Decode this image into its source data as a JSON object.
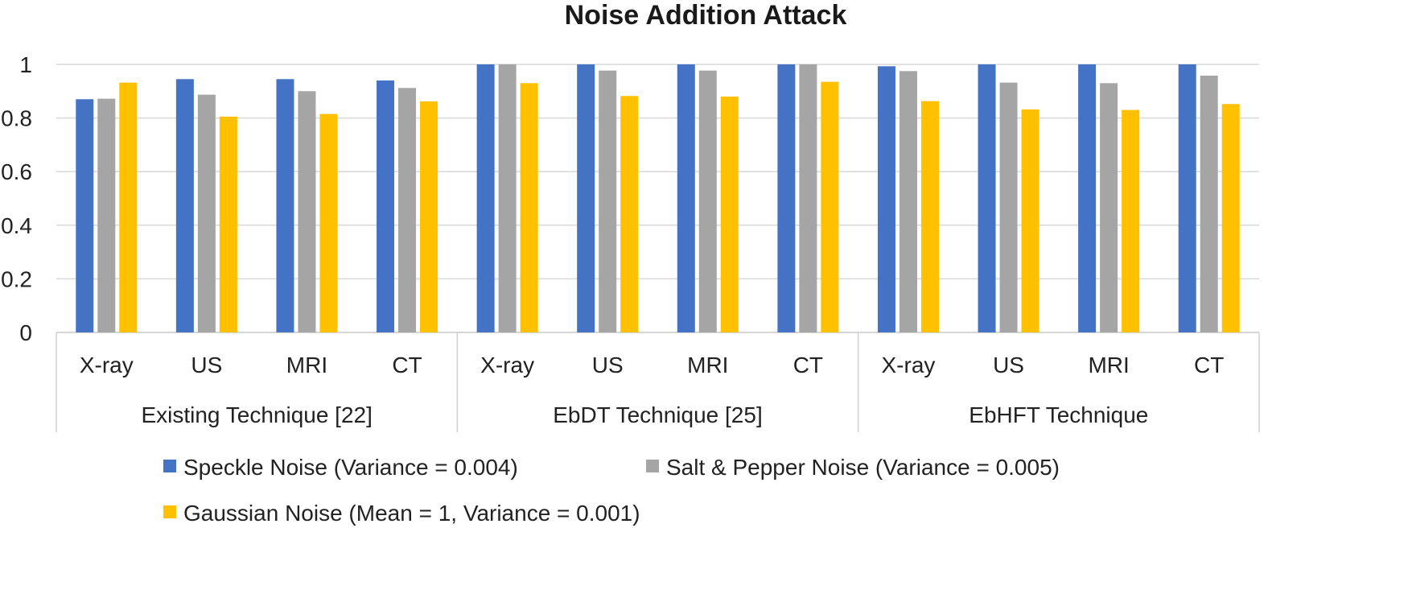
{
  "chart_data": {
    "type": "bar",
    "title": "Noise Addition Attack",
    "xlabel": "",
    "ylabel": "",
    "ylim": [
      0,
      1
    ],
    "yticks": [
      "0",
      "0.2",
      "0.4",
      "0.6",
      "0.8",
      "1"
    ],
    "grid": true,
    "legend_position": "bottom",
    "groups": [
      {
        "label": "Existing Technique [22]",
        "categories": [
          "X-ray",
          "US",
          "MRI",
          "CT"
        ]
      },
      {
        "label": "EbDT Technique [25]",
        "categories": [
          "X-ray",
          "US",
          "MRI",
          "CT"
        ]
      },
      {
        "label": "EbHFT Technique",
        "categories": [
          "X-ray",
          "US",
          "MRI",
          "CT"
        ]
      }
    ],
    "series": [
      {
        "name": "Speckle Noise  (Variance = 0.004)",
        "color": "#4472C4",
        "values": [
          0.87,
          0.945,
          0.945,
          0.94,
          1.0,
          1.0,
          1.0,
          1.0,
          0.993,
          1.0,
          1.0,
          1.0
        ]
      },
      {
        "name": "Salt & Pepper Noise (Variance = 0.005)",
        "color": "#A5A5A5",
        "values": [
          0.872,
          0.887,
          0.9,
          0.912,
          1.0,
          0.977,
          0.977,
          1.0,
          0.975,
          0.932,
          0.93,
          0.958
        ]
      },
      {
        "name": "Gaussian Noise (Mean = 1, Variance = 0.001)",
        "color": "#FFC000",
        "values": [
          0.932,
          0.805,
          0.815,
          0.862,
          0.93,
          0.882,
          0.88,
          0.935,
          0.863,
          0.832,
          0.83,
          0.852
        ]
      }
    ]
  }
}
